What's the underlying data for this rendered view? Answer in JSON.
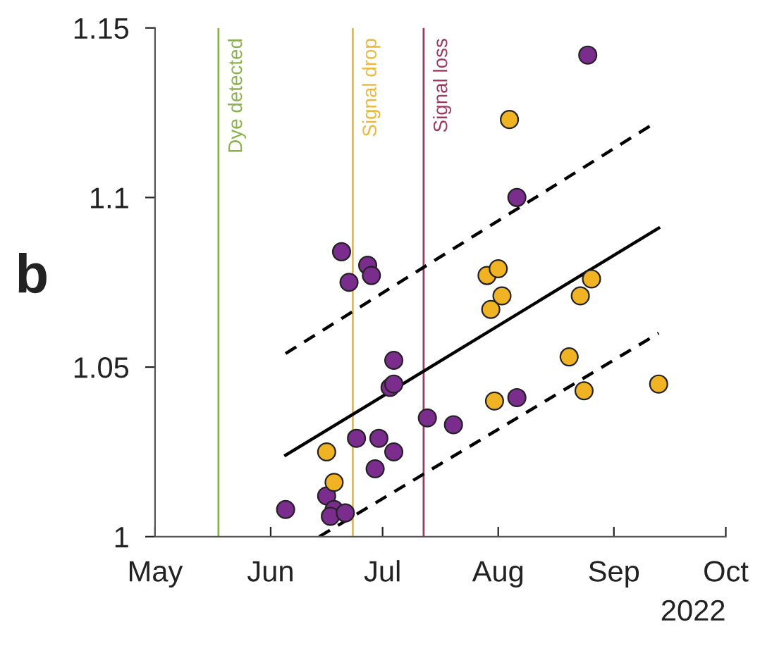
{
  "chart_data": {
    "type": "scatter",
    "xlabel": "2022",
    "annotations": [
      "b"
    ],
    "xlim": [
      "2022-05-01",
      "2022-10-01"
    ],
    "xticks": [
      {
        "value": "2022-05-01",
        "label": "May"
      },
      {
        "value": "2022-06-01",
        "label": "Jun"
      },
      {
        "value": "2022-07-01",
        "label": "Jul"
      },
      {
        "value": "2022-08-01",
        "label": "Aug"
      },
      {
        "value": "2022-09-01",
        "label": "Sep"
      },
      {
        "value": "2022-10-01",
        "label": "Oct"
      }
    ],
    "ylim": [
      1,
      1.15
    ],
    "yticks": [
      1,
      1.05,
      1.1,
      1.15
    ],
    "grid": false,
    "legend": false,
    "marker": "circle",
    "series": [
      {
        "color": "#7b2d8e",
        "x": [
          "2022-06-05",
          "2022-06-20",
          "2022-06-22",
          "2022-06-27",
          "2022-06-28",
          "2022-06-16",
          "2022-06-18",
          "2022-06-17",
          "2022-06-21",
          "2022-06-24",
          "2022-06-30",
          "2022-06-29",
          "2022-07-04",
          "2022-07-03",
          "2022-07-04",
          "2022-07-04",
          "2022-07-13",
          "2022-07-20",
          "2022-08-06",
          "2022-08-06",
          "2022-08-25"
        ],
        "values": [
          1.008,
          1.084,
          1.075,
          1.08,
          1.077,
          1.012,
          1.008,
          1.006,
          1.007,
          1.029,
          1.029,
          1.02,
          1.025,
          1.044,
          1.045,
          1.052,
          1.035,
          1.033,
          1.041,
          1.1,
          1.142
        ]
      },
      {
        "color": "#f0b323",
        "x": [
          "2022-06-16",
          "2022-06-18",
          "2022-08-04",
          "2022-07-29",
          "2022-08-01",
          "2022-08-02",
          "2022-07-30",
          "2022-07-31",
          "2022-08-20",
          "2022-08-23",
          "2022-08-26",
          "2022-08-24",
          "2022-09-13"
        ],
        "values": [
          1.025,
          1.016,
          1.123,
          1.077,
          1.079,
          1.071,
          1.067,
          1.04,
          1.053,
          1.071,
          1.076,
          1.043,
          1.045
        ]
      },
      {
        "type": "line",
        "marker": "none",
        "color": "#000000",
        "line_style": "solid",
        "x": [
          "2022-06-05",
          "2022-09-13"
        ],
        "values": [
          1.024,
          1.091
        ]
      },
      {
        "type": "line",
        "marker": "none",
        "color": "#000000",
        "line_style": "dashed",
        "x": [
          "2022-06-05",
          "2022-09-12"
        ],
        "values": [
          1.054,
          1.122
        ]
      },
      {
        "type": "line",
        "marker": "none",
        "color": "#000000",
        "line_style": "dashed",
        "x": [
          "2022-06-14",
          "2022-09-13"
        ],
        "values": [
          1.0,
          1.06
        ]
      }
    ],
    "ref_lines": [
      {
        "axis": "x",
        "value": "2022-05-18",
        "label": "Dye detected",
        "color": "#8bb24a"
      },
      {
        "axis": "x",
        "value": "2022-06-23",
        "label": "Signal drop",
        "color": "#e8b93a"
      },
      {
        "axis": "x",
        "value": "2022-07-12",
        "label": "Signal loss",
        "color": "#9c3a64"
      }
    ]
  }
}
